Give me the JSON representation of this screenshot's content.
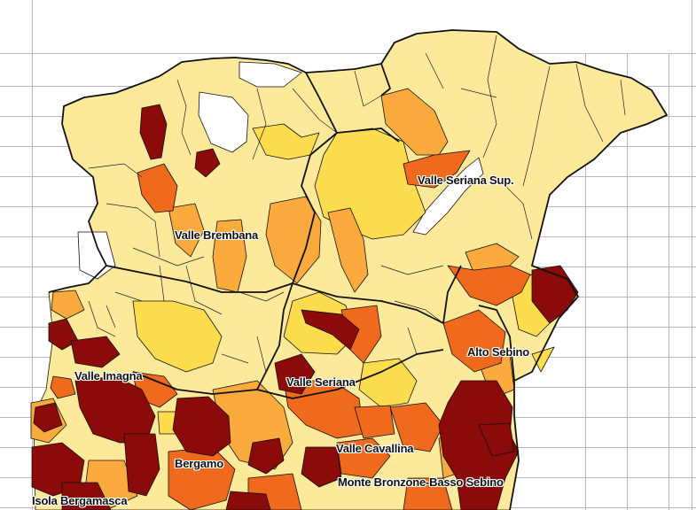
{
  "colors": {
    "very_light": "#fde99a",
    "light": "#fddc4d",
    "medium": "#fbab3e",
    "orange": "#f06a1e",
    "dark": "#8b0a0a",
    "border": "#111111",
    "grid_line": "#b8b8b8",
    "lake": "#ffffff"
  },
  "labels": {
    "valle_seriana_sup": "Valle Seriana Sup.",
    "valle_brembana": "Valle Brembana",
    "alto_sebino": "Alto Sebino",
    "valle_imagna": "Valle Imagna",
    "valle_seriana": "Valle Seriana",
    "valle_cavallina": "Valle Cavallina",
    "bergamo": "Bergamo",
    "monte_bronzone": "Monte Bronzone-Basso Sebino",
    "isola_bergamasca": "Isola Bergamasca"
  }
}
